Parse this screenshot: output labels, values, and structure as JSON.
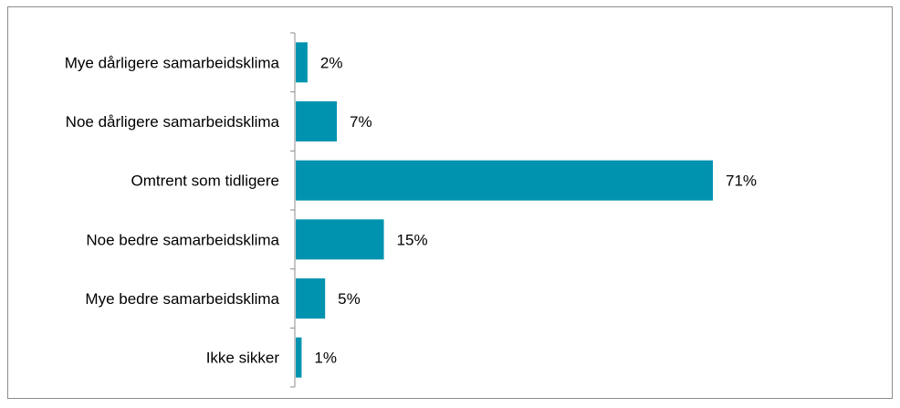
{
  "chart_data": {
    "type": "bar",
    "orientation": "horizontal",
    "categories": [
      "Mye dårligere samarbeidsklima",
      "Noe dårligere samarbeidsklima",
      "Omtrent som tidligere",
      "Noe bedre samarbeidsklima",
      "Mye bedre samarbeidsklima",
      "Ikke sikker"
    ],
    "values": [
      2,
      7,
      71,
      15,
      5,
      1
    ],
    "value_labels": [
      "2%",
      "7%",
      "71%",
      "15%",
      "5%",
      "1%"
    ],
    "unit": "%",
    "xlim": [
      0,
      71
    ],
    "grid": false,
    "legend": "none",
    "colors": {
      "bar": "#0093b0",
      "axis": "#8c8c8c",
      "text": "#000000"
    }
  }
}
